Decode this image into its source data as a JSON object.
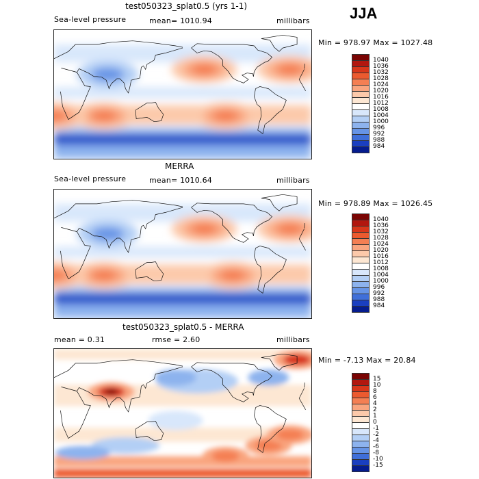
{
  "season": "JJA",
  "panels": [
    {
      "title": "test050323_splat0.5 (yrs 1-1)",
      "left_label": "Sea-level pressure",
      "center_label": "mean= 1010.94",
      "right_label": "millibars",
      "minmax": "Min = 978.97 Max = 1027.48"
    },
    {
      "title": "MERRA",
      "left_label": "Sea-level pressure",
      "center_label": "mean= 1010.64",
      "right_label": "millibars",
      "minmax": "Min = 978.89 Max = 1026.45"
    },
    {
      "title": "test050323_splat0.5 - MERRA",
      "left_label": "mean =    0.31",
      "center_label": "rmse =    2.60",
      "right_label": "millibars",
      "minmax": "Min =  -7.13 Max =  20.84"
    }
  ],
  "chart_data": [
    {
      "type": "heatmap",
      "title": "test050323_splat0.5 (yrs 1-1)",
      "variable": "Sea-level pressure",
      "units": "millibars",
      "mean": 1010.94,
      "min": 978.97,
      "max": 1027.48,
      "colorbar": {
        "labels": [
          "1040",
          "1036",
          "1032",
          "1028",
          "1024",
          "1020",
          "1016",
          "1012",
          "1008",
          "1004",
          "1000",
          "996",
          "992",
          "988",
          "984"
        ],
        "colors": [
          "#7a0403",
          "#b2170f",
          "#d8361a",
          "#ec5a2f",
          "#f47f53",
          "#f9a57f",
          "#fcc9aa",
          "#fde7d3",
          "#ffffff",
          "#d8e7fb",
          "#b3cff5",
          "#8db3ee",
          "#6694e6",
          "#3f6fd9",
          "#1a3fc0",
          "#051c8e"
        ]
      },
      "features": [
        {
          "kind": "high",
          "lon": -150,
          "lat": 35,
          "value": 1026
        },
        {
          "kind": "high",
          "lon": -30,
          "lat": 35,
          "value": 1024
        },
        {
          "kind": "high",
          "lon": 70,
          "lat": -30,
          "value": 1024
        },
        {
          "kind": "high",
          "lon": -120,
          "lat": -30,
          "value": 1021
        },
        {
          "kind": "high",
          "lon": 0,
          "lat": -30,
          "value": 1022
        },
        {
          "kind": "low",
          "lon": 75,
          "lat": 28,
          "value": 996
        },
        {
          "kind": "lowband",
          "lat": -62,
          "value": 984
        }
      ]
    },
    {
      "type": "heatmap",
      "title": "MERRA",
      "variable": "Sea-level pressure",
      "units": "millibars",
      "mean": 1010.64,
      "min": 978.89,
      "max": 1026.45,
      "colorbar": {
        "labels": [
          "1040",
          "1036",
          "1032",
          "1028",
          "1024",
          "1020",
          "1016",
          "1012",
          "1008",
          "1004",
          "1000",
          "996",
          "992",
          "988",
          "984"
        ],
        "colors": [
          "#7a0403",
          "#b2170f",
          "#d8361a",
          "#ec5a2f",
          "#f47f53",
          "#f9a57f",
          "#fcc9aa",
          "#fde7d3",
          "#ffffff",
          "#d8e7fb",
          "#b3cff5",
          "#8db3ee",
          "#6694e6",
          "#3f6fd9",
          "#1a3fc0",
          "#051c8e"
        ]
      },
      "features": [
        {
          "kind": "high",
          "lon": -150,
          "lat": 35,
          "value": 1024
        },
        {
          "kind": "high",
          "lon": -30,
          "lat": 35,
          "value": 1023
        },
        {
          "kind": "high",
          "lon": 70,
          "lat": -30,
          "value": 1022
        },
        {
          "kind": "high",
          "lon": -110,
          "lat": -30,
          "value": 1020
        },
        {
          "kind": "high",
          "lon": 0,
          "lat": -30,
          "value": 1021
        },
        {
          "kind": "low",
          "lon": 75,
          "lat": 28,
          "value": 999
        },
        {
          "kind": "lowband",
          "lat": -62,
          "value": 986
        }
      ]
    },
    {
      "type": "heatmap",
      "title": "test050323_splat0.5 - MERRA",
      "units": "millibars",
      "mean": 0.31,
      "rmse": 2.6,
      "min": -7.13,
      "max": 20.84,
      "colorbar": {
        "labels": [
          "15",
          "10",
          "8",
          "6",
          "4",
          "2",
          "1",
          "0",
          "-1",
          "-2",
          "-4",
          "-6",
          "-8",
          "-10",
          "-15"
        ],
        "colors": [
          "#7a0403",
          "#b2170f",
          "#d8361a",
          "#ec5a2f",
          "#f47f53",
          "#f9a57f",
          "#fcc9aa",
          "#fde7d3",
          "#ffffff",
          "#d8e7fb",
          "#b3cff5",
          "#8db3ee",
          "#6694e6",
          "#3f6fd9",
          "#1a3fc0",
          "#051c8e"
        ]
      },
      "features": [
        {
          "kind": "pos",
          "lon": 80,
          "lat": 30,
          "value": 10
        },
        {
          "kind": "pos",
          "lon": -60,
          "lat": -45,
          "value": 6
        },
        {
          "kind": "pos",
          "lon": -30,
          "lat": -30,
          "value": 5
        },
        {
          "kind": "pos",
          "lon": -120,
          "lat": -60,
          "value": 5
        },
        {
          "kind": "pos",
          "lon": -20,
          "lat": 75,
          "value": 8
        },
        {
          "kind": "neg",
          "lon": 170,
          "lat": 50,
          "value": -3
        },
        {
          "kind": "neg",
          "lon": -60,
          "lat": 50,
          "value": -2
        }
      ]
    }
  ]
}
